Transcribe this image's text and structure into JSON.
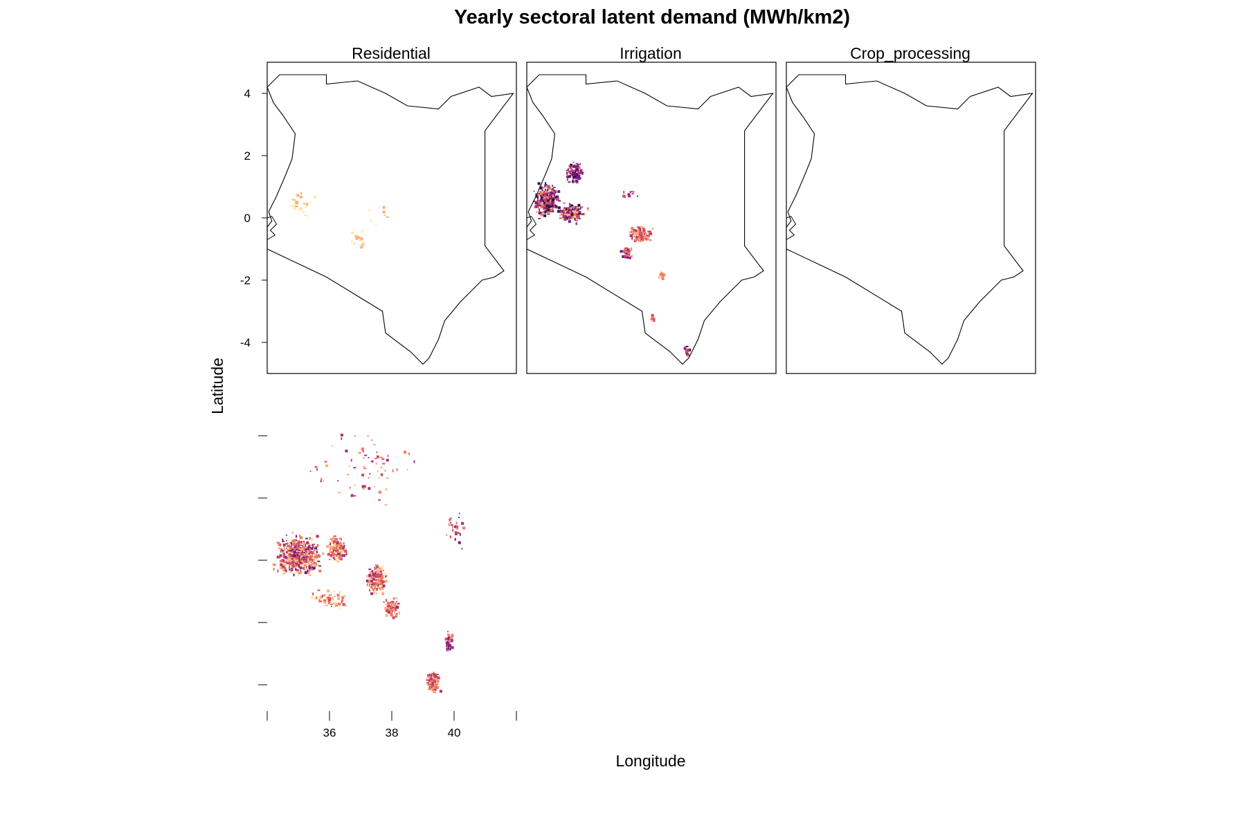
{
  "chart_data": {
    "type": "heatmap",
    "title": "Yearly sectoral latent demand (MWh/km2)",
    "xlabel": "Longitude",
    "ylabel": "Latitude",
    "xlim": [
      34,
      42
    ],
    "ylim": [
      -5,
      5
    ],
    "x_ticks": [
      36,
      38,
      40
    ],
    "y_ticks": [
      4,
      2,
      0,
      -2,
      -4
    ],
    "panels": [
      {
        "name": "Residential"
      },
      {
        "name": "Irrigation"
      },
      {
        "name": "Crop_processing"
      },
      {
        "name": ""
      }
    ],
    "colors": {
      "palette": [
        "#fde7a8",
        "#fdb07a",
        "#f4775f",
        "#d84b5c",
        "#a3307e",
        "#6c1f80",
        "#33104f"
      ],
      "outline": "#000000",
      "frame": "#000000"
    }
  }
}
